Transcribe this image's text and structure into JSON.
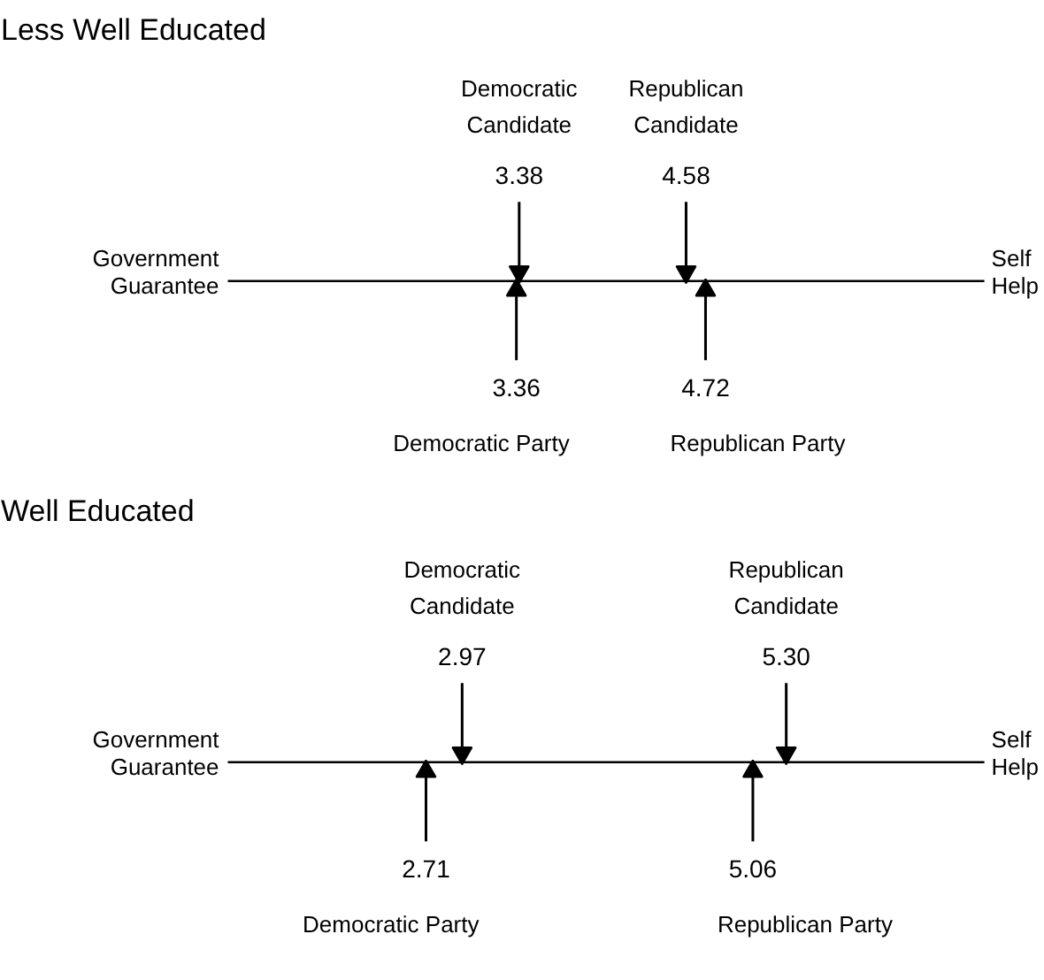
{
  "chart_data": [
    {
      "type": "other",
      "title": "Less Well Educated",
      "categories": [
        "Democratic Candidate",
        "Republican Candidate",
        "Democratic Party",
        "Republican Party"
      ],
      "values": [
        3.38,
        4.58,
        3.36,
        4.72
      ],
      "value_labels": [
        "3.38",
        "4.58",
        "3.36",
        "4.72"
      ],
      "annotations": [
        "Government Guarantee",
        "Self Help"
      ]
    },
    {
      "type": "other",
      "title": "Well Educated",
      "categories": [
        "Democratic Candidate",
        "Republican Candidate",
        "Democratic Party",
        "Republican Party"
      ],
      "values": [
        2.97,
        5.3,
        2.71,
        5.06
      ],
      "value_labels": [
        "2.97",
        "5.30",
        "2.71",
        "5.06"
      ],
      "annotations": [
        "Government Guarantee",
        "Self Help"
      ]
    }
  ]
}
